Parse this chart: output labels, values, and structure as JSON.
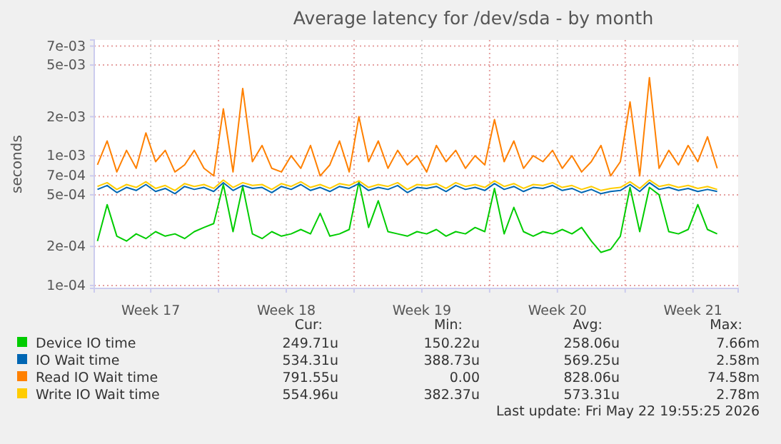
{
  "chart_data": {
    "type": "line",
    "title": "Average latency for /dev/sda - by month",
    "ylabel": "seconds",
    "log": true,
    "grid": true,
    "legend": "bottom",
    "line_style": "solid",
    "marker": "none",
    "xlim": [
      "2026-04-20T14:00",
      "2026-05-23T20:00"
    ],
    "xticks": [
      {
        "value": "2026-04-23T12:00",
        "label": "Week 17"
      },
      {
        "value": "2026-04-27T00:00",
        "label": null
      },
      {
        "value": "2026-04-30T12:00",
        "label": "Week 18"
      },
      {
        "value": "2026-05-04T00:00",
        "label": null
      },
      {
        "value": "2026-05-07T12:00",
        "label": "Week 19"
      },
      {
        "value": "2026-05-11T00:00",
        "label": null
      },
      {
        "value": "2026-05-14T12:00",
        "label": "Week 20"
      },
      {
        "value": "2026-05-18T00:00",
        "label": null
      },
      {
        "value": "2026-05-21T12:00",
        "label": "Week 21"
      }
    ],
    "ylim": [
      9.5e-05,
      0.0078
    ],
    "yticks": [
      {
        "value": 0.0001,
        "label": "1e-04"
      },
      {
        "value": 0.0002,
        "label": "2e-04"
      },
      {
        "value": 0.0005,
        "label": "5e-04"
      },
      {
        "value": 0.0007,
        "label": "7e-04"
      },
      {
        "value": 0.001,
        "label": "1e-03"
      },
      {
        "value": 0.002,
        "label": "2e-03"
      },
      {
        "value": 0.005,
        "label": "5e-03"
      },
      {
        "value": 0.007,
        "label": "7e-03"
      }
    ],
    "x": [
      "2026-04-20T18:00",
      "2026-04-21T06:00",
      "2026-04-21T18:00",
      "2026-04-22T06:00",
      "2026-04-22T18:00",
      "2026-04-23T06:00",
      "2026-04-23T18:00",
      "2026-04-24T06:00",
      "2026-04-24T18:00",
      "2026-04-25T06:00",
      "2026-04-25T18:00",
      "2026-04-26T06:00",
      "2026-04-26T18:00",
      "2026-04-27T06:00",
      "2026-04-27T18:00",
      "2026-04-28T06:00",
      "2026-04-28T18:00",
      "2026-04-29T06:00",
      "2026-04-29T18:00",
      "2026-04-30T06:00",
      "2026-04-30T18:00",
      "2026-05-01T06:00",
      "2026-05-01T18:00",
      "2026-05-02T06:00",
      "2026-05-02T18:00",
      "2026-05-03T06:00",
      "2026-05-03T18:00",
      "2026-05-04T06:00",
      "2026-05-04T18:00",
      "2026-05-05T06:00",
      "2026-05-05T18:00",
      "2026-05-06T06:00",
      "2026-05-06T18:00",
      "2026-05-07T06:00",
      "2026-05-07T18:00",
      "2026-05-08T06:00",
      "2026-05-08T18:00",
      "2026-05-09T06:00",
      "2026-05-09T18:00",
      "2026-05-10T06:00",
      "2026-05-10T18:00",
      "2026-05-11T06:00",
      "2026-05-11T18:00",
      "2026-05-12T06:00",
      "2026-05-12T18:00",
      "2026-05-13T06:00",
      "2026-05-13T18:00",
      "2026-05-14T06:00",
      "2026-05-14T18:00",
      "2026-05-15T06:00",
      "2026-05-15T18:00",
      "2026-05-16T06:00",
      "2026-05-16T18:00",
      "2026-05-17T06:00",
      "2026-05-17T18:00",
      "2026-05-18T06:00",
      "2026-05-18T18:00",
      "2026-05-19T06:00",
      "2026-05-19T18:00",
      "2026-05-20T06:00",
      "2026-05-20T18:00",
      "2026-05-21T06:00",
      "2026-05-21T18:00",
      "2026-05-22T06:00",
      "2026-05-22T18:00"
    ],
    "series": [
      {
        "name": "Device IO time",
        "color": "#00cc00",
        "values": [
          0.00022,
          0.00042,
          0.00024,
          0.00022,
          0.00025,
          0.00023,
          0.00026,
          0.00024,
          0.00025,
          0.00023,
          0.00026,
          0.00028,
          0.0003,
          0.0006,
          0.00026,
          0.00058,
          0.00025,
          0.00023,
          0.00026,
          0.00024,
          0.00025,
          0.00027,
          0.00025,
          0.00036,
          0.00024,
          0.00025,
          0.00027,
          0.00063,
          0.00028,
          0.00045,
          0.00026,
          0.00025,
          0.00024,
          0.00026,
          0.00025,
          0.00027,
          0.00024,
          0.00026,
          0.00025,
          0.00028,
          0.00026,
          0.00056,
          0.00025,
          0.0004,
          0.00026,
          0.00024,
          0.00026,
          0.00025,
          0.00027,
          0.00025,
          0.00028,
          0.00022,
          0.00018,
          0.00019,
          0.00024,
          0.00057,
          0.00026,
          0.00057,
          0.0005,
          0.00026,
          0.00025,
          0.00027,
          0.00042,
          0.00027,
          0.00025
        ]
      },
      {
        "name": "IO Wait time",
        "color": "#0066b3",
        "values": [
          0.00055,
          0.00059,
          0.00052,
          0.00057,
          0.00054,
          0.0006,
          0.00053,
          0.00056,
          0.00051,
          0.00058,
          0.00055,
          0.00057,
          0.00053,
          0.00062,
          0.00054,
          0.00059,
          0.00056,
          0.00057,
          0.00052,
          0.00058,
          0.00055,
          0.0006,
          0.00054,
          0.00057,
          0.00053,
          0.00058,
          0.00056,
          0.00061,
          0.00054,
          0.00057,
          0.00055,
          0.00059,
          0.00052,
          0.00057,
          0.00056,
          0.00058,
          0.00053,
          0.00059,
          0.00055,
          0.00057,
          0.00054,
          0.00061,
          0.00055,
          0.00058,
          0.00053,
          0.00057,
          0.00056,
          0.00059,
          0.00054,
          0.00056,
          0.00052,
          0.00055,
          0.00051,
          0.00053,
          0.00054,
          0.0006,
          0.00053,
          0.00062,
          0.00055,
          0.00057,
          0.00054,
          0.00056,
          0.00053,
          0.00055,
          0.00053
        ]
      },
      {
        "name": "Read IO Wait time",
        "color": "#ff8000",
        "values": [
          0.00085,
          0.0013,
          0.00075,
          0.0011,
          0.0008,
          0.0015,
          0.0009,
          0.0011,
          0.00075,
          0.00085,
          0.0011,
          0.0008,
          0.0007,
          0.0023,
          0.00075,
          0.0033,
          0.0009,
          0.0012,
          0.0008,
          0.00075,
          0.001,
          0.0008,
          0.0012,
          0.0007,
          0.00085,
          0.0013,
          0.00075,
          0.002,
          0.0009,
          0.0013,
          0.0008,
          0.0011,
          0.00085,
          0.001,
          0.00075,
          0.0012,
          0.0009,
          0.0011,
          0.0008,
          0.001,
          0.00085,
          0.0019,
          0.0009,
          0.0013,
          0.0008,
          0.001,
          0.0009,
          0.0011,
          0.0008,
          0.001,
          0.00075,
          0.0009,
          0.0012,
          0.0007,
          0.0009,
          0.0026,
          0.0007,
          0.004,
          0.0008,
          0.0011,
          0.00085,
          0.0012,
          0.0009,
          0.0014,
          0.0008
        ]
      },
      {
        "name": "Write IO Wait time",
        "color": "#ffcc00",
        "values": [
          0.00058,
          0.00062,
          0.00055,
          0.0006,
          0.00057,
          0.00063,
          0.00056,
          0.00059,
          0.00054,
          0.00061,
          0.00058,
          0.0006,
          0.00056,
          0.00065,
          0.00057,
          0.00062,
          0.00059,
          0.0006,
          0.00055,
          0.00061,
          0.00058,
          0.00063,
          0.00057,
          0.0006,
          0.00056,
          0.00061,
          0.00059,
          0.00064,
          0.00057,
          0.0006,
          0.00058,
          0.00062,
          0.00055,
          0.0006,
          0.00059,
          0.00061,
          0.00056,
          0.00062,
          0.00058,
          0.0006,
          0.00057,
          0.00064,
          0.00058,
          0.00061,
          0.00056,
          0.0006,
          0.00059,
          0.00062,
          0.00057,
          0.00059,
          0.00055,
          0.00058,
          0.00054,
          0.00056,
          0.00057,
          0.00063,
          0.00056,
          0.00065,
          0.00058,
          0.0006,
          0.00057,
          0.00059,
          0.00056,
          0.00058,
          0.00055
        ]
      }
    ],
    "annotations": [
      "Cur:",
      "Min:",
      "Avg:",
      "Max:",
      "249.71u",
      "150.22u",
      "258.06u",
      "7.66m",
      "534.31u",
      "388.73u",
      "569.25u",
      "2.58m",
      "791.55u",
      "0.00",
      "828.06u",
      "74.58m",
      "554.96u",
      "382.37u",
      "573.31u",
      "2.78m",
      "Last update: Fri May 22 19:55:25 2026"
    ]
  }
}
